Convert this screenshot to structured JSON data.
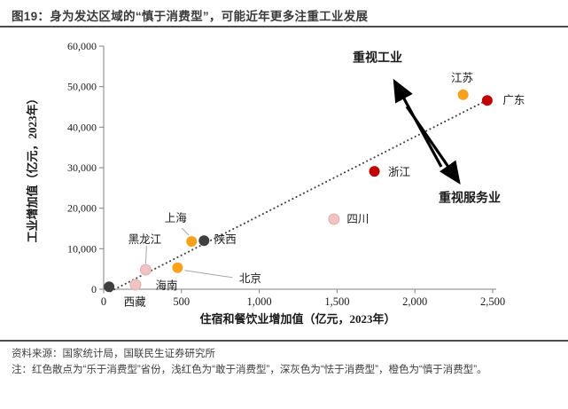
{
  "title": "图19：身为发达区域的“慎于消费型”，可能近年更多注重工业发展",
  "footer": {
    "source": "资料来源：国家统计局，国联民生证券研究所",
    "note": "注：红色散点为“乐于消费型”省份，浅红色为“敢于消费型”，深灰色为“怯于消费型”，橙色为“慎于消费型”。"
  },
  "colors": {
    "red": "#C00000",
    "light_red": "#F1C3C2",
    "light_red_stroke": "#E6AFAE",
    "dark_gray": "#404040",
    "orange": "#F7A11C",
    "axis": "#808080",
    "trendline": "#404040",
    "arrow": "#000000",
    "leader": "#A6A6A6"
  },
  "chart_data": {
    "type": "scatter",
    "title": "",
    "xlabel": "住宿和餐饮业增加值（亿元，2023年）",
    "ylabel": "工业增加值（亿元，2023年）",
    "xlim": [
      0,
      2500
    ],
    "ylim": [
      0,
      60000
    ],
    "grid": false,
    "x_ticks": [
      0,
      500,
      1000,
      1500,
      2000,
      2500
    ],
    "x_tick_labels": [
      "0",
      "500",
      "1,000",
      "1,500",
      "2,000",
      "2,500"
    ],
    "y_ticks": [
      0,
      10000,
      20000,
      30000,
      40000,
      50000,
      60000
    ],
    "y_tick_labels": [
      "0",
      "10,000",
      "20,000",
      "30,000",
      "40,000",
      "50,000",
      "60,000"
    ],
    "series": [
      {
        "name": "乐于消费型",
        "color": "#C00000",
        "points": [
          {
            "label": "浙江",
            "x": 1740,
            "y": 29100,
            "label_dx": 28,
            "label_dy": 1
          },
          {
            "label": "广东",
            "x": 2465,
            "y": 46600,
            "label_dx": 30,
            "label_dy": 0
          }
        ]
      },
      {
        "name": "敢于消费型",
        "color": "#F1C3C2",
        "stroke": "#E6AFAE",
        "points": [
          {
            "label": "海南",
            "x": 205,
            "y": 1100,
            "label_dx": 35,
            "label_dy": 1
          },
          {
            "label": "黑龙江",
            "x": 270,
            "y": 4800,
            "label_dx": -1,
            "label_dy": -34,
            "leader": [
              1,
              -27,
              0,
              -7
            ]
          },
          {
            "label": "四川",
            "x": 1480,
            "y": 17300,
            "label_dx": 27,
            "label_dy": 0
          }
        ]
      },
      {
        "name": "怯于消费型",
        "color": "#404040",
        "points": [
          {
            "label": "西藏",
            "x": 35,
            "y": 600,
            "label_dx": 29,
            "label_dy": 17
          },
          {
            "label": "陕西",
            "x": 645,
            "y": 12000,
            "label_dx": 24,
            "label_dy": -1
          }
        ]
      },
      {
        "name": "慎于消费型",
        "color": "#F7A11C",
        "points": [
          {
            "label": "北京",
            "x": 475,
            "y": 5300,
            "label_dx": 82,
            "label_dy": 12,
            "leader": [
              8,
              3,
              62,
              11
            ]
          },
          {
            "label": "上海",
            "x": 565,
            "y": 11800,
            "label_dx": -18,
            "label_dy": -26,
            "leader": [
              -11,
              -15,
              -3,
              -7
            ]
          },
          {
            "label": "江苏",
            "x": 2310,
            "y": 48000,
            "label_dx": -1,
            "label_dy": -19
          }
        ]
      }
    ],
    "trendline": {
      "style": "dotted",
      "x1": 45,
      "y1": -500,
      "x2": 2455,
      "y2": 46500
    },
    "annotations": [
      {
        "text": "重视工业",
        "cx": 426,
        "cy": 66,
        "arrow_from": [
          498,
          188
        ],
        "arrow_to": [
          446,
          93
        ]
      },
      {
        "text": "重视服务业",
        "cx": 530,
        "cy": 224,
        "arrow_from": [
          459,
          120
        ],
        "arrow_to": [
          517,
          204
        ]
      }
    ]
  }
}
